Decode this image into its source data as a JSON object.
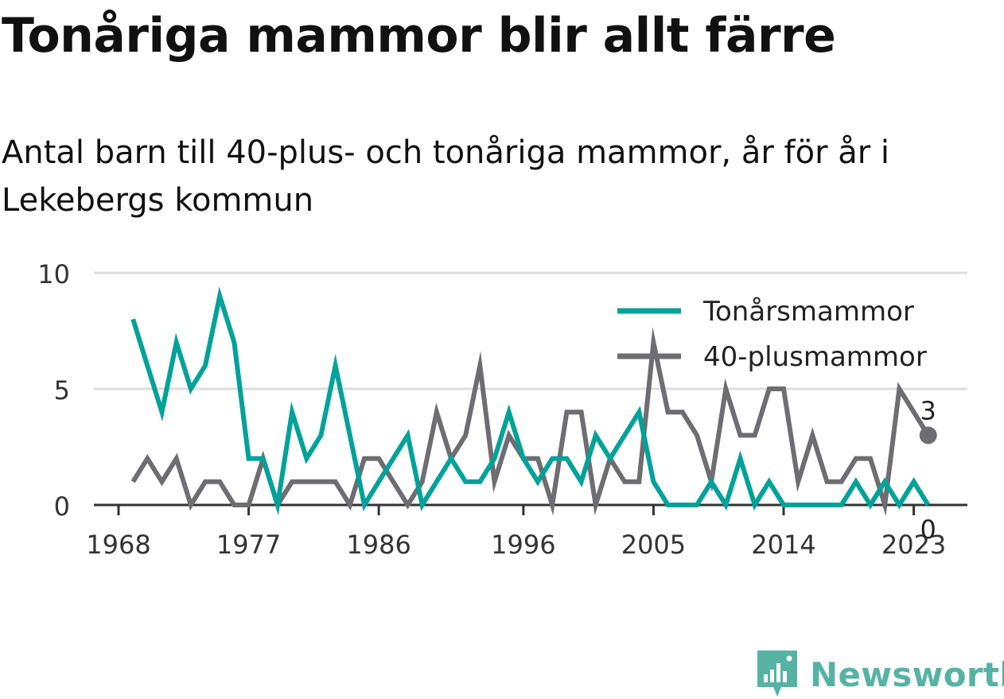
{
  "title": "Tonåriga mammor blir allt färre",
  "subtitle": "Antal barn till 40-plus- och tonåriga mammor, år för år i Lekebergs kommun",
  "brand": {
    "name": "Newsworthy",
    "icon": "newsworthy-bar-chart-icon",
    "color": "#56b3a3"
  },
  "chart_data": {
    "type": "line",
    "x": [
      1969,
      1970,
      1971,
      1972,
      1973,
      1974,
      1975,
      1976,
      1977,
      1978,
      1979,
      1980,
      1981,
      1982,
      1983,
      1984,
      1985,
      1986,
      1987,
      1988,
      1989,
      1990,
      1991,
      1992,
      1993,
      1994,
      1995,
      1996,
      1997,
      1998,
      1999,
      2000,
      2001,
      2002,
      2003,
      2004,
      2005,
      2006,
      2007,
      2008,
      2009,
      2010,
      2011,
      2012,
      2013,
      2014,
      2015,
      2016,
      2017,
      2018,
      2019,
      2020,
      2021,
      2022,
      2023,
      2024
    ],
    "x_ticks": [
      "1968",
      "1977",
      "1986",
      "1996",
      "2005",
      "2014",
      "2023"
    ],
    "y_ticks": [
      "0",
      "5",
      "10"
    ],
    "ylim": [
      0,
      10
    ],
    "grid": true,
    "legend_position": "top-right",
    "series": [
      {
        "name": "Tonårsmammor",
        "color": "#00a29a",
        "values": [
          8,
          6,
          4,
          7,
          5,
          6,
          9,
          7,
          2,
          2,
          0,
          4,
          2,
          3,
          6,
          3,
          0,
          1,
          2,
          3,
          0,
          1,
          2,
          1,
          1,
          2,
          4,
          2,
          1,
          2,
          2,
          1,
          3,
          2,
          3,
          4,
          1,
          0,
          0,
          0,
          1,
          0,
          2,
          0,
          1,
          0,
          0,
          0,
          0,
          0,
          1,
          0,
          1,
          0,
          1,
          0
        ],
        "end_label": "0"
      },
      {
        "name": "40-plusmammor",
        "color": "#6e6d72",
        "values": [
          1,
          2,
          1,
          2,
          0,
          1,
          1,
          0,
          0,
          2,
          0,
          1,
          1,
          1,
          1,
          0,
          2,
          2,
          1,
          0,
          1,
          4,
          2,
          3,
          6,
          1,
          3,
          2,
          2,
          0,
          4,
          4,
          0,
          2,
          1,
          1,
          7,
          4,
          4,
          3,
          1,
          5,
          3,
          3,
          5,
          5,
          1,
          3,
          1,
          1,
          2,
          2,
          0,
          5,
          4,
          3
        ],
        "end_label": "3"
      }
    ]
  }
}
